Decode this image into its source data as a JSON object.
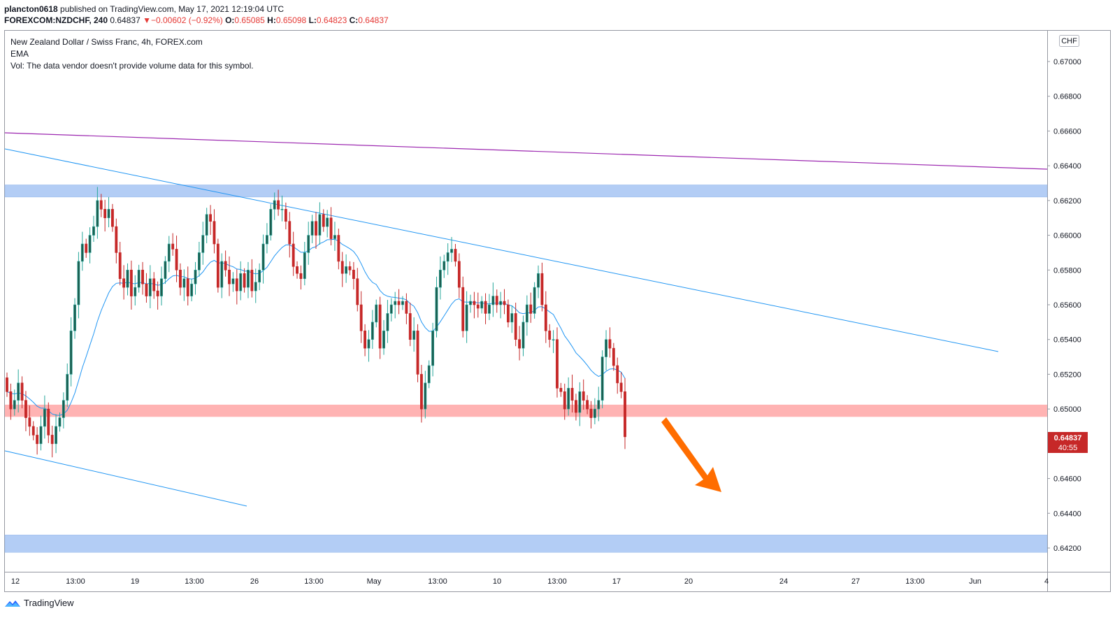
{
  "header": {
    "author": "plancton0618",
    "published_text": "published on TradingView.com, May 17, 2021 12:19:04 UTC",
    "symbol": "FOREXCOM:NZDCHF, 240",
    "last": "0.64837",
    "change_arrow": "▼",
    "change": "−0.00602 (−0.92%)",
    "o_label": "O:",
    "o": "0.65085",
    "h_label": "H:",
    "h": "0.65098",
    "l_label": "L:",
    "l": "0.64823",
    "c_label": "C:",
    "c": "0.64837"
  },
  "legend": {
    "title": "New Zealand Dollar / Swiss Franc, 4h, FOREX.com",
    "ema": "EMA",
    "vol": "Vol: The data vendor doesn't provide volume data for this symbol."
  },
  "axis": {
    "currency": "CHF",
    "y_ticks": [
      "0.67000",
      "0.66800",
      "0.66600",
      "0.66400",
      "0.66200",
      "0.66000",
      "0.65800",
      "0.65600",
      "0.65400",
      "0.65200",
      "0.65000",
      "0.64600",
      "0.64400",
      "0.64200"
    ],
    "x_ticks": [
      "12",
      "13:00",
      "19",
      "13:00",
      "26",
      "13:00",
      "May",
      "13:00",
      "10",
      "13:00",
      "17",
      "20",
      "24",
      "27",
      "13:00",
      "Jun",
      "4"
    ],
    "price_label": "0.64837",
    "countdown": "40:55"
  },
  "footer": {
    "brand": "TradingView"
  },
  "colors": {
    "up": "#26a69a",
    "up_body": "#1b5e50",
    "down": "#c62828",
    "ema": "#2196f3",
    "trendline": "#2196f3",
    "purple": "#9c27b0",
    "zone_blue": "#b3cdf5",
    "zone_red": "#ffb3b3",
    "arrow": "#ff6d00"
  },
  "chart_data": {
    "type": "candlestick",
    "title": "New Zealand Dollar / Swiss Franc, 4h, FOREX.com",
    "symbol": "FOREXCOM:NZDCHF",
    "timeframe": "4h",
    "ylim": [
      0.6414,
      0.6718
    ],
    "y_ticks": [
      0.67,
      0.668,
      0.666,
      0.664,
      0.662,
      0.66,
      0.658,
      0.656,
      0.654,
      0.652,
      0.65,
      0.646,
      0.644,
      0.642
    ],
    "last_price": 0.64837,
    "ohlc": {
      "open": 0.65085,
      "high": 0.65098,
      "low": 0.64823,
      "close": 0.64837
    },
    "zones": [
      {
        "color": "blue",
        "from": 0.6622,
        "to": 0.6629
      },
      {
        "color": "red",
        "from": 0.64955,
        "to": 0.65025
      },
      {
        "color": "blue",
        "from": 0.64175,
        "to": 0.64275
      }
    ],
    "closes": [
      0.651,
      0.65,
      0.6505,
      0.6515,
      0.6505,
      0.6495,
      0.649,
      0.6485,
      0.648,
      0.649,
      0.65,
      0.6485,
      0.648,
      0.649,
      0.6495,
      0.6505,
      0.652,
      0.6545,
      0.656,
      0.6585,
      0.6595,
      0.659,
      0.66,
      0.6605,
      0.662,
      0.6615,
      0.661,
      0.6615,
      0.6605,
      0.659,
      0.6575,
      0.657,
      0.658,
      0.6565,
      0.657,
      0.658,
      0.6572,
      0.6565,
      0.6575,
      0.6568,
      0.6565,
      0.6575,
      0.6585,
      0.6595,
      0.6592,
      0.658,
      0.657,
      0.6575,
      0.6565,
      0.6572,
      0.658,
      0.659,
      0.66,
      0.6612,
      0.6608,
      0.6595,
      0.657,
      0.6585,
      0.658,
      0.6572,
      0.6575,
      0.6568,
      0.6578,
      0.657,
      0.658,
      0.6568,
      0.6573,
      0.658,
      0.6595,
      0.66,
      0.6615,
      0.662,
      0.6615,
      0.6615,
      0.6608,
      0.6595,
      0.6582,
      0.6578,
      0.6575,
      0.659,
      0.66,
      0.6608,
      0.66,
      0.6612,
      0.6605,
      0.661,
      0.6598,
      0.66,
      0.6585,
      0.6578,
      0.6582,
      0.658,
      0.6575,
      0.656,
      0.6545,
      0.6535,
      0.654,
      0.655,
      0.656,
      0.6535,
      0.6545,
      0.6555,
      0.656,
      0.6562,
      0.656,
      0.6562,
      0.6555,
      0.654,
      0.6545,
      0.652,
      0.65,
      0.6515,
      0.6525,
      0.6545,
      0.657,
      0.658,
      0.6585,
      0.659,
      0.6592,
      0.6585,
      0.657,
      0.6545,
      0.656,
      0.6562,
      0.656,
      0.6558,
      0.6562,
      0.6555,
      0.656,
      0.6565,
      0.656,
      0.6562,
      0.656,
      0.655,
      0.6555,
      0.654,
      0.6535,
      0.655,
      0.656,
      0.6555,
      0.657,
      0.6578,
      0.656,
      0.6545,
      0.654,
      0.654,
      0.6512,
      0.651,
      0.65,
      0.6512,
      0.6505,
      0.6498,
      0.651,
      0.6505,
      0.65,
      0.6495,
      0.65,
      0.6505,
      0.653,
      0.654,
      0.6535,
      0.6525,
      0.6515,
      0.651,
      0.6484
    ]
  }
}
